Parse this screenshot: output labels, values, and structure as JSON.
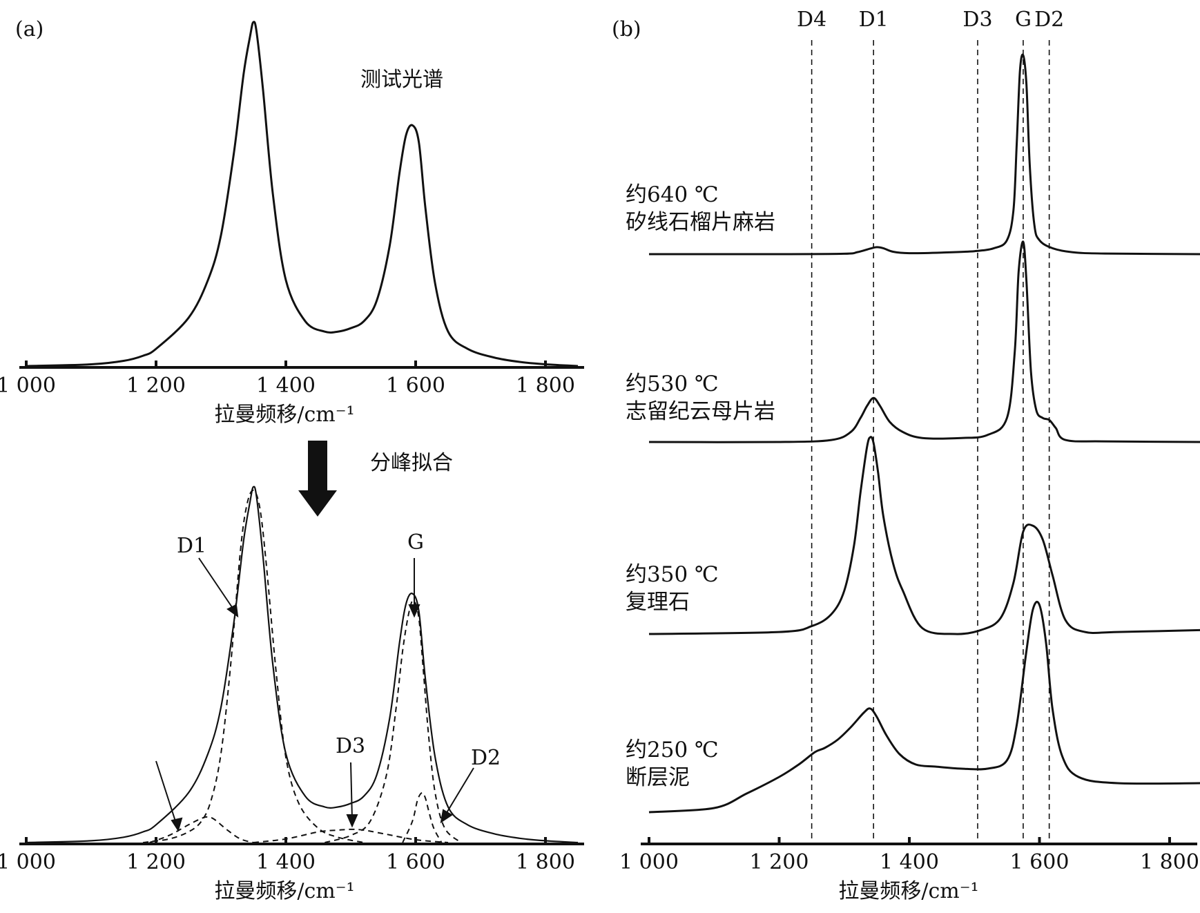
{
  "chart_data": [
    {
      "id": "a-top",
      "type": "line",
      "panel_label": "(a)",
      "title": "测试光谱",
      "xlabel": "拉曼频移/cm⁻¹",
      "ylabel": "",
      "xlim": [
        980,
        1850
      ],
      "xticks": [
        1000,
        1200,
        1400,
        1600,
        1800
      ],
      "xtick_labels": [
        "1 000",
        "1 200",
        "1 400",
        "1 600",
        "1 800"
      ],
      "series": [
        {
          "style": "solid",
          "x": [
            1000,
            1100,
            1150,
            1180,
            1200,
            1250,
            1280,
            1300,
            1320,
            1335,
            1345,
            1350,
            1355,
            1365,
            1380,
            1400,
            1430,
            1460,
            1480,
            1500,
            1520,
            1540,
            1560,
            1575,
            1585,
            1595,
            1605,
            1615,
            1630,
            1650,
            1680,
            1720,
            1760,
            1800,
            1850
          ],
          "y": [
            0.0,
            0.005,
            0.015,
            0.03,
            0.05,
            0.14,
            0.25,
            0.38,
            0.62,
            0.85,
            0.96,
            1.0,
            0.97,
            0.8,
            0.5,
            0.25,
            0.13,
            0.1,
            0.1,
            0.11,
            0.13,
            0.19,
            0.35,
            0.56,
            0.67,
            0.7,
            0.65,
            0.46,
            0.24,
            0.1,
            0.05,
            0.025,
            0.012,
            0.005,
            0.0
          ]
        }
      ],
      "note": "分峰拟合"
    },
    {
      "id": "a-bottom",
      "type": "line",
      "xlabel": "拉曼频移/cm⁻¹",
      "ylabel": "",
      "xlim": [
        980,
        1850
      ],
      "xticks": [
        1000,
        1200,
        1400,
        1600,
        1800
      ],
      "xtick_labels": [
        "1 000",
        "1 200",
        "1 400",
        "1 600",
        "1 800"
      ],
      "peak_labels": [
        "D1",
        "G",
        "D3",
        "D2"
      ],
      "series": [
        {
          "style": "solid",
          "x": [
            1000,
            1100,
            1150,
            1180,
            1200,
            1250,
            1280,
            1300,
            1320,
            1335,
            1345,
            1350,
            1355,
            1365,
            1380,
            1400,
            1430,
            1460,
            1480,
            1500,
            1520,
            1540,
            1560,
            1575,
            1585,
            1595,
            1605,
            1615,
            1630,
            1650,
            1680,
            1720,
            1760,
            1800,
            1850
          ],
          "y": [
            0.0,
            0.005,
            0.015,
            0.03,
            0.05,
            0.14,
            0.25,
            0.38,
            0.62,
            0.85,
            0.96,
            1.0,
            0.97,
            0.8,
            0.5,
            0.25,
            0.13,
            0.1,
            0.1,
            0.11,
            0.13,
            0.19,
            0.35,
            0.56,
            0.67,
            0.7,
            0.65,
            0.46,
            0.24,
            0.1,
            0.05,
            0.025,
            0.012,
            0.005,
            0.0
          ]
        },
        {
          "style": "dashed",
          "x": [
            1180,
            1220,
            1250,
            1270,
            1285,
            1300,
            1315,
            1330,
            1340,
            1350,
            1360,
            1370,
            1385,
            1400,
            1420,
            1450,
            1480,
            1520
          ],
          "y": [
            0.0,
            0.01,
            0.03,
            0.06,
            0.12,
            0.25,
            0.5,
            0.82,
            0.95,
            0.99,
            0.94,
            0.78,
            0.48,
            0.24,
            0.11,
            0.04,
            0.015,
            0.0
          ]
        },
        {
          "style": "dashed",
          "x": [
            1460,
            1500,
            1530,
            1555,
            1570,
            1580,
            1590,
            1597,
            1605,
            1612,
            1620,
            1630,
            1645,
            1670
          ],
          "y": [
            0.0,
            0.02,
            0.06,
            0.19,
            0.38,
            0.54,
            0.65,
            0.68,
            0.63,
            0.48,
            0.3,
            0.14,
            0.04,
            0.0
          ]
        },
        {
          "style": "dashed",
          "x": [
            1350,
            1400,
            1450,
            1480,
            1500,
            1520,
            1550,
            1600,
            1650
          ],
          "y": [
            0.0,
            0.01,
            0.03,
            0.035,
            0.037,
            0.035,
            0.025,
            0.008,
            0.0
          ]
        },
        {
          "style": "dashed",
          "x": [
            1190,
            1220,
            1250,
            1270,
            1280,
            1290,
            1310,
            1330,
            1350
          ],
          "y": [
            0.0,
            0.02,
            0.05,
            0.068,
            0.072,
            0.065,
            0.035,
            0.01,
            0.0
          ]
        },
        {
          "style": "dashed",
          "x": [
            1580,
            1595,
            1603,
            1610,
            1615,
            1620,
            1628,
            1640
          ],
          "y": [
            0.0,
            0.06,
            0.12,
            0.14,
            0.125,
            0.09,
            0.04,
            0.0
          ]
        }
      ]
    },
    {
      "id": "b",
      "type": "line",
      "panel_label": "(b)",
      "xlabel": "拉曼频移/cm⁻¹",
      "ylabel": "",
      "xlim": [
        980,
        1850
      ],
      "xticks": [
        1000,
        1200,
        1400,
        1600,
        1800
      ],
      "xtick_labels": [
        "1 000",
        "1 200",
        "1 400",
        "1 600",
        "1 800"
      ],
      "reference_lines": [
        {
          "label": "D4",
          "x": 1250
        },
        {
          "label": "D1",
          "x": 1345
        },
        {
          "label": "D3",
          "x": 1505
        },
        {
          "label": "G",
          "x": 1575
        },
        {
          "label": "D2",
          "x": 1615
        }
      ],
      "series": [
        {
          "name": "约640 ℃ 矽线石榴片麻岩",
          "label_lines": [
            "约640 ℃",
            "矽线石榴片麻岩"
          ],
          "x": [
            1000,
            1200,
            1300,
            1320,
            1340,
            1350,
            1360,
            1375,
            1400,
            1450,
            1500,
            1530,
            1550,
            1560,
            1565,
            1570,
            1575,
            1580,
            1585,
            1592,
            1600,
            1620,
            1650,
            1700,
            1850
          ],
          "y": [
            0.0,
            0.0,
            0.002,
            0.01,
            0.028,
            0.035,
            0.03,
            0.012,
            0.005,
            0.008,
            0.015,
            0.03,
            0.07,
            0.22,
            0.55,
            0.92,
            1.0,
            0.85,
            0.45,
            0.15,
            0.07,
            0.03,
            0.01,
            0.003,
            0.0
          ]
        },
        {
          "name": "约530 ℃ 志留纪云母片岩",
          "label_lines": [
            "约530 ℃",
            "志留纪云母片岩"
          ],
          "x": [
            1000,
            1200,
            1280,
            1310,
            1325,
            1335,
            1345,
            1355,
            1370,
            1390,
            1420,
            1480,
            1520,
            1550,
            1562,
            1568,
            1575,
            1580,
            1587,
            1595,
            1605,
            1615,
            1625,
            1640,
            1700,
            1850
          ],
          "y": [
            0.0,
            0.0,
            0.01,
            0.05,
            0.12,
            0.18,
            0.22,
            0.18,
            0.1,
            0.05,
            0.02,
            0.02,
            0.035,
            0.12,
            0.45,
            0.85,
            1.0,
            0.8,
            0.35,
            0.16,
            0.12,
            0.11,
            0.07,
            0.01,
            0.003,
            0.0
          ]
        },
        {
          "name": "约350 ℃ 复理石",
          "label_lines": [
            "约350 ℃",
            "复理石"
          ],
          "x": [
            1000,
            1200,
            1250,
            1280,
            1300,
            1315,
            1325,
            1335,
            1340,
            1345,
            1352,
            1360,
            1375,
            1390,
            1420,
            1470,
            1510,
            1540,
            1560,
            1575,
            1590,
            1605,
            1620,
            1640,
            1670,
            1720,
            1850
          ],
          "y": [
            0.0,
            0.01,
            0.04,
            0.1,
            0.22,
            0.45,
            0.72,
            0.95,
            1.0,
            0.97,
            0.82,
            0.6,
            0.36,
            0.22,
            0.03,
            0.0,
            0.02,
            0.08,
            0.26,
            0.52,
            0.55,
            0.48,
            0.3,
            0.07,
            0.01,
            0.01,
            0.02
          ],
          "y_offset_note": "scaled"
        },
        {
          "name": "约250 ℃ 断层泥",
          "label_lines": [
            "约250 ℃",
            "断层泥"
          ],
          "x": [
            1000,
            1100,
            1150,
            1200,
            1230,
            1255,
            1270,
            1290,
            1310,
            1330,
            1340,
            1350,
            1365,
            1385,
            1410,
            1440,
            1480,
            1520,
            1550,
            1565,
            1580,
            1590,
            1600,
            1610,
            1620,
            1635,
            1660,
            1720,
            1850
          ],
          "y": [
            0.0,
            0.02,
            0.09,
            0.17,
            0.23,
            0.29,
            0.31,
            0.35,
            0.41,
            0.48,
            0.5,
            0.46,
            0.37,
            0.28,
            0.23,
            0.22,
            0.21,
            0.21,
            0.25,
            0.42,
            0.78,
            0.98,
            1.0,
            0.82,
            0.5,
            0.27,
            0.17,
            0.14,
            0.14
          ]
        }
      ]
    }
  ],
  "labels": {
    "panel_a": "(a)",
    "panel_b": "(b)",
    "test_spectrum": "测试光谱",
    "fit_note": "分峰拟合",
    "xlabel": "拉曼频移/cm⁻¹",
    "d1": "D1",
    "g": "G",
    "d3": "D3",
    "d2": "D2",
    "b_refs": [
      "D4",
      "D1",
      "D3",
      "G",
      "D2"
    ],
    "b_samples": [
      [
        "约640 ℃",
        "矽线石榴片麻岩"
      ],
      [
        "约530 ℃",
        "志留纪云母片岩"
      ],
      [
        "约350 ℃",
        "复理石"
      ],
      [
        "约250 ℃",
        "断层泥"
      ]
    ],
    "xtick_labels": [
      "1 000",
      "1 200",
      "1 400",
      "1 600",
      "1 800"
    ]
  }
}
